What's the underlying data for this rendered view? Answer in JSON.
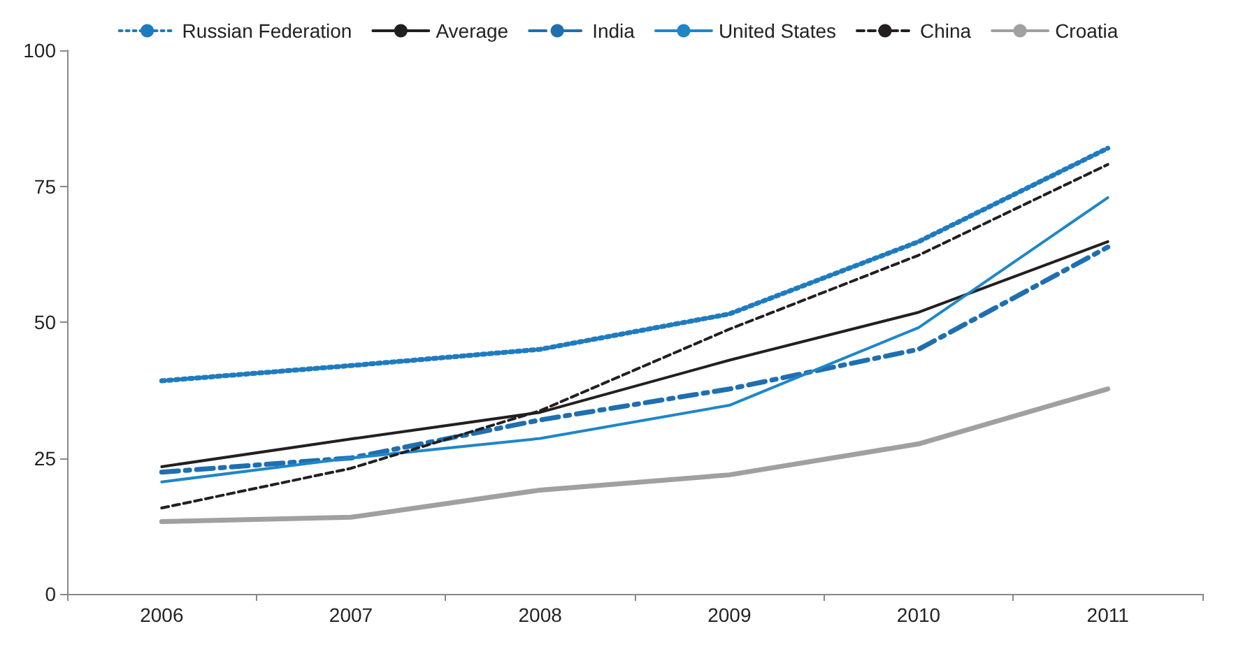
{
  "chart_data": {
    "type": "line",
    "categories": [
      "2006",
      "2007",
      "2008",
      "2009",
      "2010",
      "2011"
    ],
    "series": [
      {
        "name": "Russian Federation",
        "color": "#1f7bbf",
        "line_style": "dotted",
        "values": [
          39.2,
          42,
          45,
          51.5,
          64.8,
          82
        ]
      },
      {
        "name": "Average",
        "color": "#231f20",
        "line_style": "solid",
        "values": [
          23.4,
          28.5,
          33.4,
          43,
          51.8,
          64.8
        ]
      },
      {
        "name": "India",
        "color": "#1f6fb0",
        "line_style": "dashdot",
        "values": [
          22.4,
          25,
          32,
          37.7,
          45,
          63.8
        ]
      },
      {
        "name": "United States",
        "color": "#1f86c8",
        "line_style": "solid",
        "values": [
          20.6,
          25,
          28.6,
          34.7,
          49,
          72.9
        ]
      },
      {
        "name": "China",
        "color": "#231f20",
        "line_style": "dashed",
        "values": [
          15.8,
          23.1,
          33.7,
          48.7,
          62.3,
          79
        ]
      },
      {
        "name": "Croatia",
        "color": "#a0a0a0",
        "line_style": "solid",
        "values": [
          13.3,
          14.1,
          19.1,
          21.9,
          27.6,
          37.7
        ]
      }
    ],
    "ylim": [
      0,
      100
    ],
    "yticks": [
      0,
      25,
      50,
      75,
      100
    ],
    "grid": false,
    "legend": "top",
    "marker": "none"
  }
}
